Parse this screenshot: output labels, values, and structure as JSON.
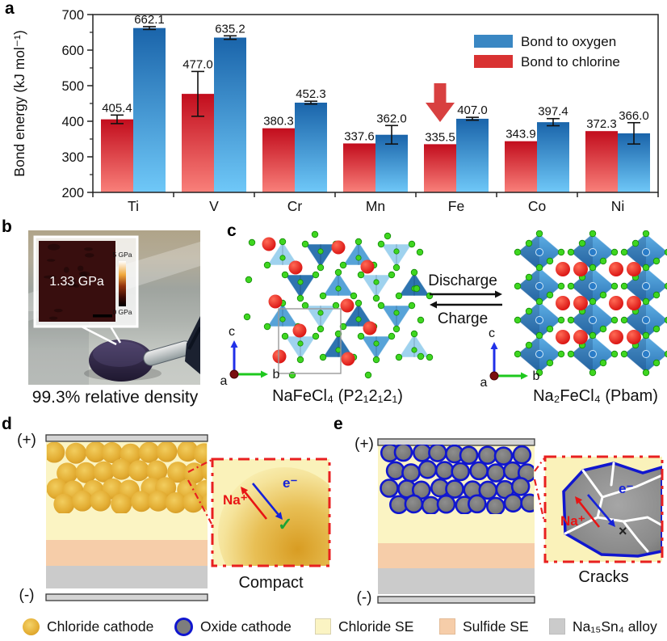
{
  "figure_title": "Figure panels a-e",
  "chart_data": {
    "type": "bar",
    "title": "",
    "categories": [
      "Ti",
      "V",
      "Cr",
      "Mn",
      "Fe",
      "Co",
      "Ni"
    ],
    "series": [
      {
        "name": "Bond to oxygen",
        "color": "#3a87c3",
        "values": [
          662.1,
          635.2,
          452.3,
          362.0,
          407.0,
          397.4,
          366.0
        ],
        "errors": [
          4,
          5,
          4,
          26,
          4,
          10,
          30
        ]
      },
      {
        "name": "Bond to chlorine",
        "color": "#d93232",
        "values": [
          405.4,
          477.0,
          380.3,
          337.6,
          335.5,
          343.9,
          372.3
        ],
        "errors": [
          12,
          63,
          0,
          0,
          0,
          0,
          0
        ]
      }
    ],
    "bar_order": [
      "Bond to chlorine",
      "Bond to oxygen"
    ],
    "ylabel": "Bond energy (kJ mol⁻¹)",
    "ylim": [
      200,
      700
    ],
    "yticks": [
      200,
      300,
      400,
      500,
      600,
      700
    ],
    "grid": false,
    "legend_position": "top-right",
    "annotation": {
      "type": "down-arrow",
      "color": "#d84040",
      "category": "Fe"
    }
  },
  "panel_a": {
    "label": "a"
  },
  "panel_b": {
    "label": "b",
    "inset_pressure": "1.33 GPa",
    "colorbar_top": "5 GPa",
    "colorbar_bottom": "0 GPa",
    "caption": "99.3% relative density"
  },
  "panel_c": {
    "label": "c",
    "left_structure": "NaFeCl₄ (P2₁2₁2₁)",
    "right_structure": "Na₂FeCl₄ (Pbam)",
    "forward": "Discharge",
    "backward": "Charge",
    "axis_a": "a",
    "axis_b": "b",
    "axis_c": "c"
  },
  "panel_d": {
    "label": "d",
    "positive": "(+)",
    "negative": "(-)",
    "ion": "Na⁺",
    "electron": "e⁻",
    "check": "✓",
    "caption": "Compact"
  },
  "panel_e": {
    "label": "e",
    "positive": "(+)",
    "negative": "(-)",
    "ion": "Na⁺",
    "electron": "e⁻",
    "cross": "×",
    "caption": "Cracks"
  },
  "legend": {
    "items": [
      {
        "swatch": "chloride-cathode",
        "label": "Chloride cathode"
      },
      {
        "swatch": "oxide-cathode",
        "label": "Oxide cathode"
      },
      {
        "swatch": "chloride-se",
        "label": "Chloride SE"
      },
      {
        "swatch": "sulfide-se",
        "label": "Sulfide SE"
      },
      {
        "swatch": "alloy",
        "label": "Na₁₅Sn₄ alloy"
      }
    ]
  },
  "colors": {
    "bar_red_top": "#c20d1d",
    "bar_red_bottom": "#f9807a",
    "bar_blue_top": "#1a64aa",
    "bar_blue_bottom": "#6fc8f8",
    "legend_blue": "#3a87c3",
    "legend_red": "#d93232",
    "chloride_se": "#fbf4c3",
    "sulfide_se": "#f6cda9",
    "alloy": "#cbcbcb",
    "gold_core": "#f2cd5e",
    "gold_edge": "#cd9220",
    "oxide_gray": "#7b7b7b",
    "oxide_ring": "#1016cf",
    "ion_red": "#e81414",
    "electron_blue": "#1522d8",
    "check_green": "#1da335",
    "inset_border": "#e82020",
    "atom_green": "#3fd620",
    "atom_red": "#dd1010",
    "poly_blue": "#3f93d8"
  }
}
